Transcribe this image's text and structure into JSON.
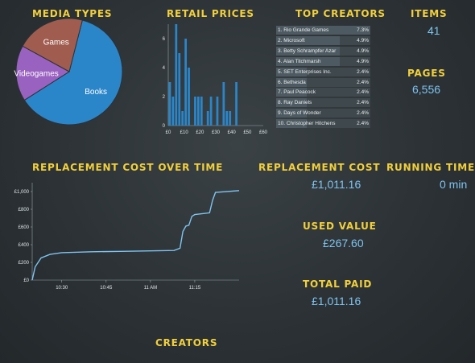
{
  "media_types": {
    "title": "Media Types",
    "slices": [
      {
        "label": "Books",
        "value": 62,
        "color": "#2b86c9"
      },
      {
        "label": "Videogames",
        "value": 17,
        "color": "#9a62c0"
      },
      {
        "label": "Games",
        "value": 21,
        "color": "#a05d4f"
      }
    ]
  },
  "retail_prices": {
    "title": "Retail Prices"
  },
  "top_creators": {
    "title": "Top Creators",
    "rows": [
      {
        "name": "1. Rio Grande Games",
        "pct": "7.3%",
        "value": 7.3
      },
      {
        "name": "2. Microsoft",
        "pct": "4.9%",
        "value": 4.9
      },
      {
        "name": "3. Betty Schrampfer Azar",
        "pct": "4.9%",
        "value": 4.9
      },
      {
        "name": "4. Alan Titchmarsh",
        "pct": "4.9%",
        "value": 4.9
      },
      {
        "name": "5. SET Enterprises Inc.",
        "pct": "2.4%",
        "value": 2.4
      },
      {
        "name": "6. Bethesda",
        "pct": "2.4%",
        "value": 2.4
      },
      {
        "name": "7. Paul Peacock",
        "pct": "2.4%",
        "value": 2.4
      },
      {
        "name": "8. Ray Daniels",
        "pct": "2.4%",
        "value": 2.4
      },
      {
        "name": "9. Days of Wonder",
        "pct": "2.4%",
        "value": 2.4
      },
      {
        "name": "10. Christopher Hitchens",
        "pct": "2.4%",
        "value": 2.4
      }
    ]
  },
  "items": {
    "title": "Items",
    "value": "41"
  },
  "pages": {
    "title": "Pages",
    "value": "6,556"
  },
  "replacement_over_time": {
    "title": "Replacement Cost Over Time"
  },
  "replacement_cost": {
    "title": "Replacement Cost",
    "value": "£1,011.16"
  },
  "running_time": {
    "title": "Running Time",
    "value": "0 min"
  },
  "used_value": {
    "title": "Used Value",
    "value": "£267.60"
  },
  "total_paid": {
    "title": "Total Paid",
    "value": "£1,011.16"
  },
  "creators": {
    "title": "Creators"
  },
  "chart_data": [
    {
      "type": "pie",
      "categories": [
        "Books",
        "Videogames",
        "Games"
      ],
      "values": [
        62,
        17,
        21
      ]
    },
    {
      "type": "bar",
      "x": [
        0,
        2,
        4,
        6,
        8,
        10,
        12,
        14,
        16,
        18,
        20,
        22,
        24,
        26,
        28,
        30,
        32,
        34,
        36,
        38,
        40,
        42,
        44,
        46,
        48,
        50,
        52,
        54,
        56,
        58
      ],
      "values": [
        3,
        2,
        7,
        5,
        1,
        6,
        4,
        0,
        2,
        2,
        2,
        0,
        1,
        2,
        0,
        2,
        0,
        3,
        1,
        1,
        0,
        3,
        0,
        0,
        0,
        0,
        0,
        0,
        0,
        0
      ],
      "xticks": [
        "£0",
        "£10",
        "£20",
        "£30",
        "£40",
        "£50",
        "£60"
      ],
      "yticks": [
        "0",
        "2",
        "4",
        "6"
      ],
      "xlim": [
        0,
        60
      ],
      "ylim": [
        0,
        7
      ]
    },
    {
      "type": "bar",
      "categories": [
        "1. Rio Grande Games",
        "2. Microsoft",
        "3. Betty Schrampfer Azar",
        "4. Alan Titchmarsh",
        "5. SET Enterprises Inc.",
        "6. Bethesda",
        "7. Paul Peacock",
        "8. Ray Daniels",
        "9. Days of Wonder",
        "10. Christopher Hitchens"
      ],
      "values": [
        7.3,
        4.9,
        4.9,
        4.9,
        2.4,
        2.4,
        2.4,
        2.4,
        2.4,
        2.4
      ]
    },
    {
      "type": "line",
      "x": [
        "10:20",
        "10:21",
        "10:23",
        "10:26",
        "10:30",
        "10:40",
        "10:50",
        "11:00",
        "11:08",
        "11:10",
        "11:11",
        "11:12",
        "11:13",
        "11:14",
        "11:15",
        "11:20",
        "11:21",
        "11:22",
        "11:30"
      ],
      "y": [
        0,
        150,
        250,
        290,
        310,
        320,
        325,
        330,
        335,
        360,
        550,
        610,
        620,
        720,
        740,
        760,
        900,
        990,
        1011.16
      ],
      "xticks": [
        "10:30",
        "10:45",
        "11 AM",
        "11:15"
      ],
      "yticks": [
        "£0",
        "£200",
        "£400",
        "£600",
        "£800",
        "£1,000"
      ],
      "ylim": [
        0,
        1100
      ]
    }
  ]
}
